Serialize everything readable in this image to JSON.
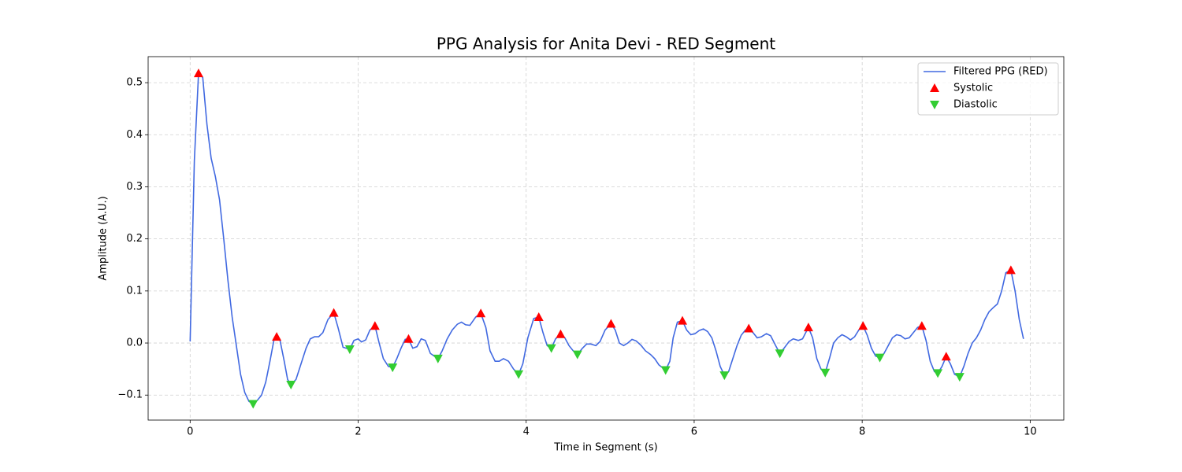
{
  "chart_data": {
    "type": "line",
    "title": "PPG Analysis for Anita Devi - RED Segment",
    "xlabel": "Time in Segment (s)",
    "ylabel": "Amplitude (A.U.)",
    "xlim": [
      -0.5,
      10.4
    ],
    "ylim": [
      -0.148,
      0.55
    ],
    "xticks": [
      0,
      2,
      4,
      6,
      8,
      10
    ],
    "yticks": [
      {
        "value": -0.1,
        "label": "−0.1"
      },
      {
        "value": 0,
        "label": "0.0"
      },
      0.1,
      0.2,
      0.3,
      0.4,
      0.5
    ],
    "grid": true,
    "legend": "upper right",
    "series": [
      {
        "name": "Filtered PPG (RED)",
        "color": "#4169e1",
        "marker": "none",
        "x": [
          0,
          0.05,
          0.1,
          0.15,
          0.2,
          0.25,
          0.3,
          0.35,
          0.4,
          0.45,
          0.5,
          0.55,
          0.6,
          0.65,
          0.7,
          0.75,
          0.8,
          0.85,
          0.9,
          0.95,
          1.0,
          1.03,
          1.07,
          1.12,
          1.16,
          1.2,
          1.26,
          1.32,
          1.38,
          1.43,
          1.48,
          1.53,
          1.58,
          1.64,
          1.71,
          1.76,
          1.82,
          1.9,
          1.95,
          2.0,
          2.04,
          2.09,
          2.14,
          2.2,
          2.25,
          2.3,
          2.36,
          2.41,
          2.46,
          2.51,
          2.56,
          2.6,
          2.65,
          2.7,
          2.75,
          2.8,
          2.86,
          2.95,
          3.0,
          3.06,
          3.12,
          3.18,
          3.23,
          3.28,
          3.33,
          3.4,
          3.46,
          3.52,
          3.57,
          3.63,
          3.68,
          3.73,
          3.79,
          3.85,
          3.91,
          3.96,
          4.02,
          4.09,
          4.15,
          4.2,
          4.25,
          4.3,
          4.35,
          4.41,
          4.46,
          4.51,
          4.56,
          4.61,
          4.67,
          4.72,
          4.77,
          4.83,
          4.88,
          4.94,
          5.01,
          5.06,
          5.11,
          5.16,
          5.21,
          5.26,
          5.31,
          5.37,
          5.42,
          5.48,
          5.53,
          5.58,
          5.66,
          5.71,
          5.75,
          5.8,
          5.86,
          5.91,
          5.96,
          6.01,
          6.06,
          6.11,
          6.16,
          6.21,
          6.26,
          6.31,
          6.36,
          6.41,
          6.46,
          6.51,
          6.56,
          6.61,
          6.65,
          6.7,
          6.75,
          6.8,
          6.86,
          6.91,
          6.97,
          7.02,
          7.07,
          7.13,
          7.18,
          7.24,
          7.29,
          7.36,
          7.41,
          7.46,
          7.51,
          7.56,
          7.61,
          7.66,
          7.71,
          7.76,
          7.81,
          7.86,
          7.91,
          7.96,
          8.01,
          8.06,
          8.11,
          8.16,
          8.21,
          8.26,
          8.31,
          8.36,
          8.41,
          8.46,
          8.51,
          8.56,
          8.61,
          8.66,
          8.71,
          8.76,
          8.81,
          8.86,
          8.9,
          8.95,
          9.0,
          9.05,
          9.1,
          9.16,
          9.21,
          9.26,
          9.31,
          9.36,
          9.41,
          9.46,
          9.51,
          9.56,
          9.61,
          9.66,
          9.71,
          9.77,
          9.82,
          9.87,
          9.92
        ],
        "values": [
          0.003,
          0.35,
          0.518,
          0.51,
          0.42,
          0.355,
          0.32,
          0.275,
          0.2,
          0.12,
          0.05,
          -0.005,
          -0.06,
          -0.095,
          -0.112,
          -0.117,
          -0.11,
          -0.1,
          -0.075,
          -0.035,
          0.008,
          0.012,
          0.005,
          -0.035,
          -0.07,
          -0.08,
          -0.07,
          -0.04,
          -0.01,
          0.008,
          0.012,
          0.012,
          0.02,
          0.045,
          0.058,
          0.03,
          -0.008,
          -0.012,
          0.005,
          0.008,
          0.002,
          0.006,
          0.025,
          0.033,
          0,
          -0.03,
          -0.045,
          -0.047,
          -0.03,
          -0.01,
          0.007,
          0.008,
          -0.01,
          -0.007,
          0.008,
          0.005,
          -0.02,
          -0.03,
          -0.015,
          0.008,
          0.025,
          0.036,
          0.04,
          0.035,
          0.034,
          0.05,
          0.057,
          0.03,
          -0.015,
          -0.035,
          -0.035,
          -0.03,
          -0.035,
          -0.05,
          -0.06,
          -0.04,
          0.01,
          0.047,
          0.05,
          0.02,
          -0.005,
          -0.01,
          0.008,
          0.017,
          0.01,
          -0.005,
          -0.015,
          -0.022,
          -0.01,
          -0.002,
          -0.002,
          -0.005,
          0.003,
          0.025,
          0.037,
          0.025,
          0,
          -0.005,
          0,
          0.007,
          0.004,
          -0.005,
          -0.015,
          -0.022,
          -0.03,
          -0.042,
          -0.052,
          -0.035,
          0.01,
          0.04,
          0.043,
          0.025,
          0.016,
          0.018,
          0.024,
          0.027,
          0.022,
          0.01,
          -0.015,
          -0.045,
          -0.062,
          -0.055,
          -0.03,
          -0.005,
          0.015,
          0.025,
          0.028,
          0.02,
          0.01,
          0.012,
          0.018,
          0.014,
          -0.005,
          -0.02,
          -0.01,
          0.003,
          0.008,
          0.005,
          0.008,
          0.03,
          0.01,
          -0.03,
          -0.05,
          -0.057,
          -0.03,
          0,
          0.01,
          0.016,
          0.012,
          0.006,
          0.012,
          0.025,
          0.033,
          0.015,
          -0.01,
          -0.025,
          -0.028,
          -0.02,
          -0.005,
          0.01,
          0.016,
          0.014,
          0.008,
          0.01,
          0.02,
          0.03,
          0.033,
          0.005,
          -0.035,
          -0.055,
          -0.058,
          -0.045,
          -0.026,
          -0.04,
          -0.06,
          -0.065,
          -0.045,
          -0.02,
          0,
          0.01,
          0.025,
          0.045,
          0.06,
          0.068,
          0.075,
          0.1,
          0.135,
          0.14,
          0.1,
          0.045,
          0.008
        ]
      },
      {
        "name": "Systolic",
        "color": "#ff0000",
        "marker": "^",
        "x": [
          0.1,
          1.03,
          1.71,
          2.2,
          2.6,
          3.46,
          4.15,
          4.41,
          5.01,
          5.86,
          6.65,
          7.36,
          8.01,
          8.71,
          9.0,
          9.77
        ],
        "values": [
          0.518,
          0.012,
          0.058,
          0.033,
          0.008,
          0.057,
          0.05,
          0.017,
          0.037,
          0.043,
          0.028,
          0.03,
          0.033,
          0.033,
          -0.026,
          0.14
        ]
      },
      {
        "name": "Diastolic",
        "color": "#32cd32",
        "marker": "v",
        "x": [
          0.75,
          1.2,
          1.9,
          2.41,
          2.95,
          3.91,
          4.3,
          4.61,
          5.66,
          6.36,
          7.02,
          7.56,
          8.21,
          8.9,
          9.16
        ],
        "values": [
          -0.117,
          -0.08,
          -0.012,
          -0.047,
          -0.03,
          -0.06,
          -0.01,
          -0.022,
          -0.052,
          -0.062,
          -0.02,
          -0.057,
          -0.028,
          -0.058,
          -0.065
        ]
      }
    ]
  }
}
